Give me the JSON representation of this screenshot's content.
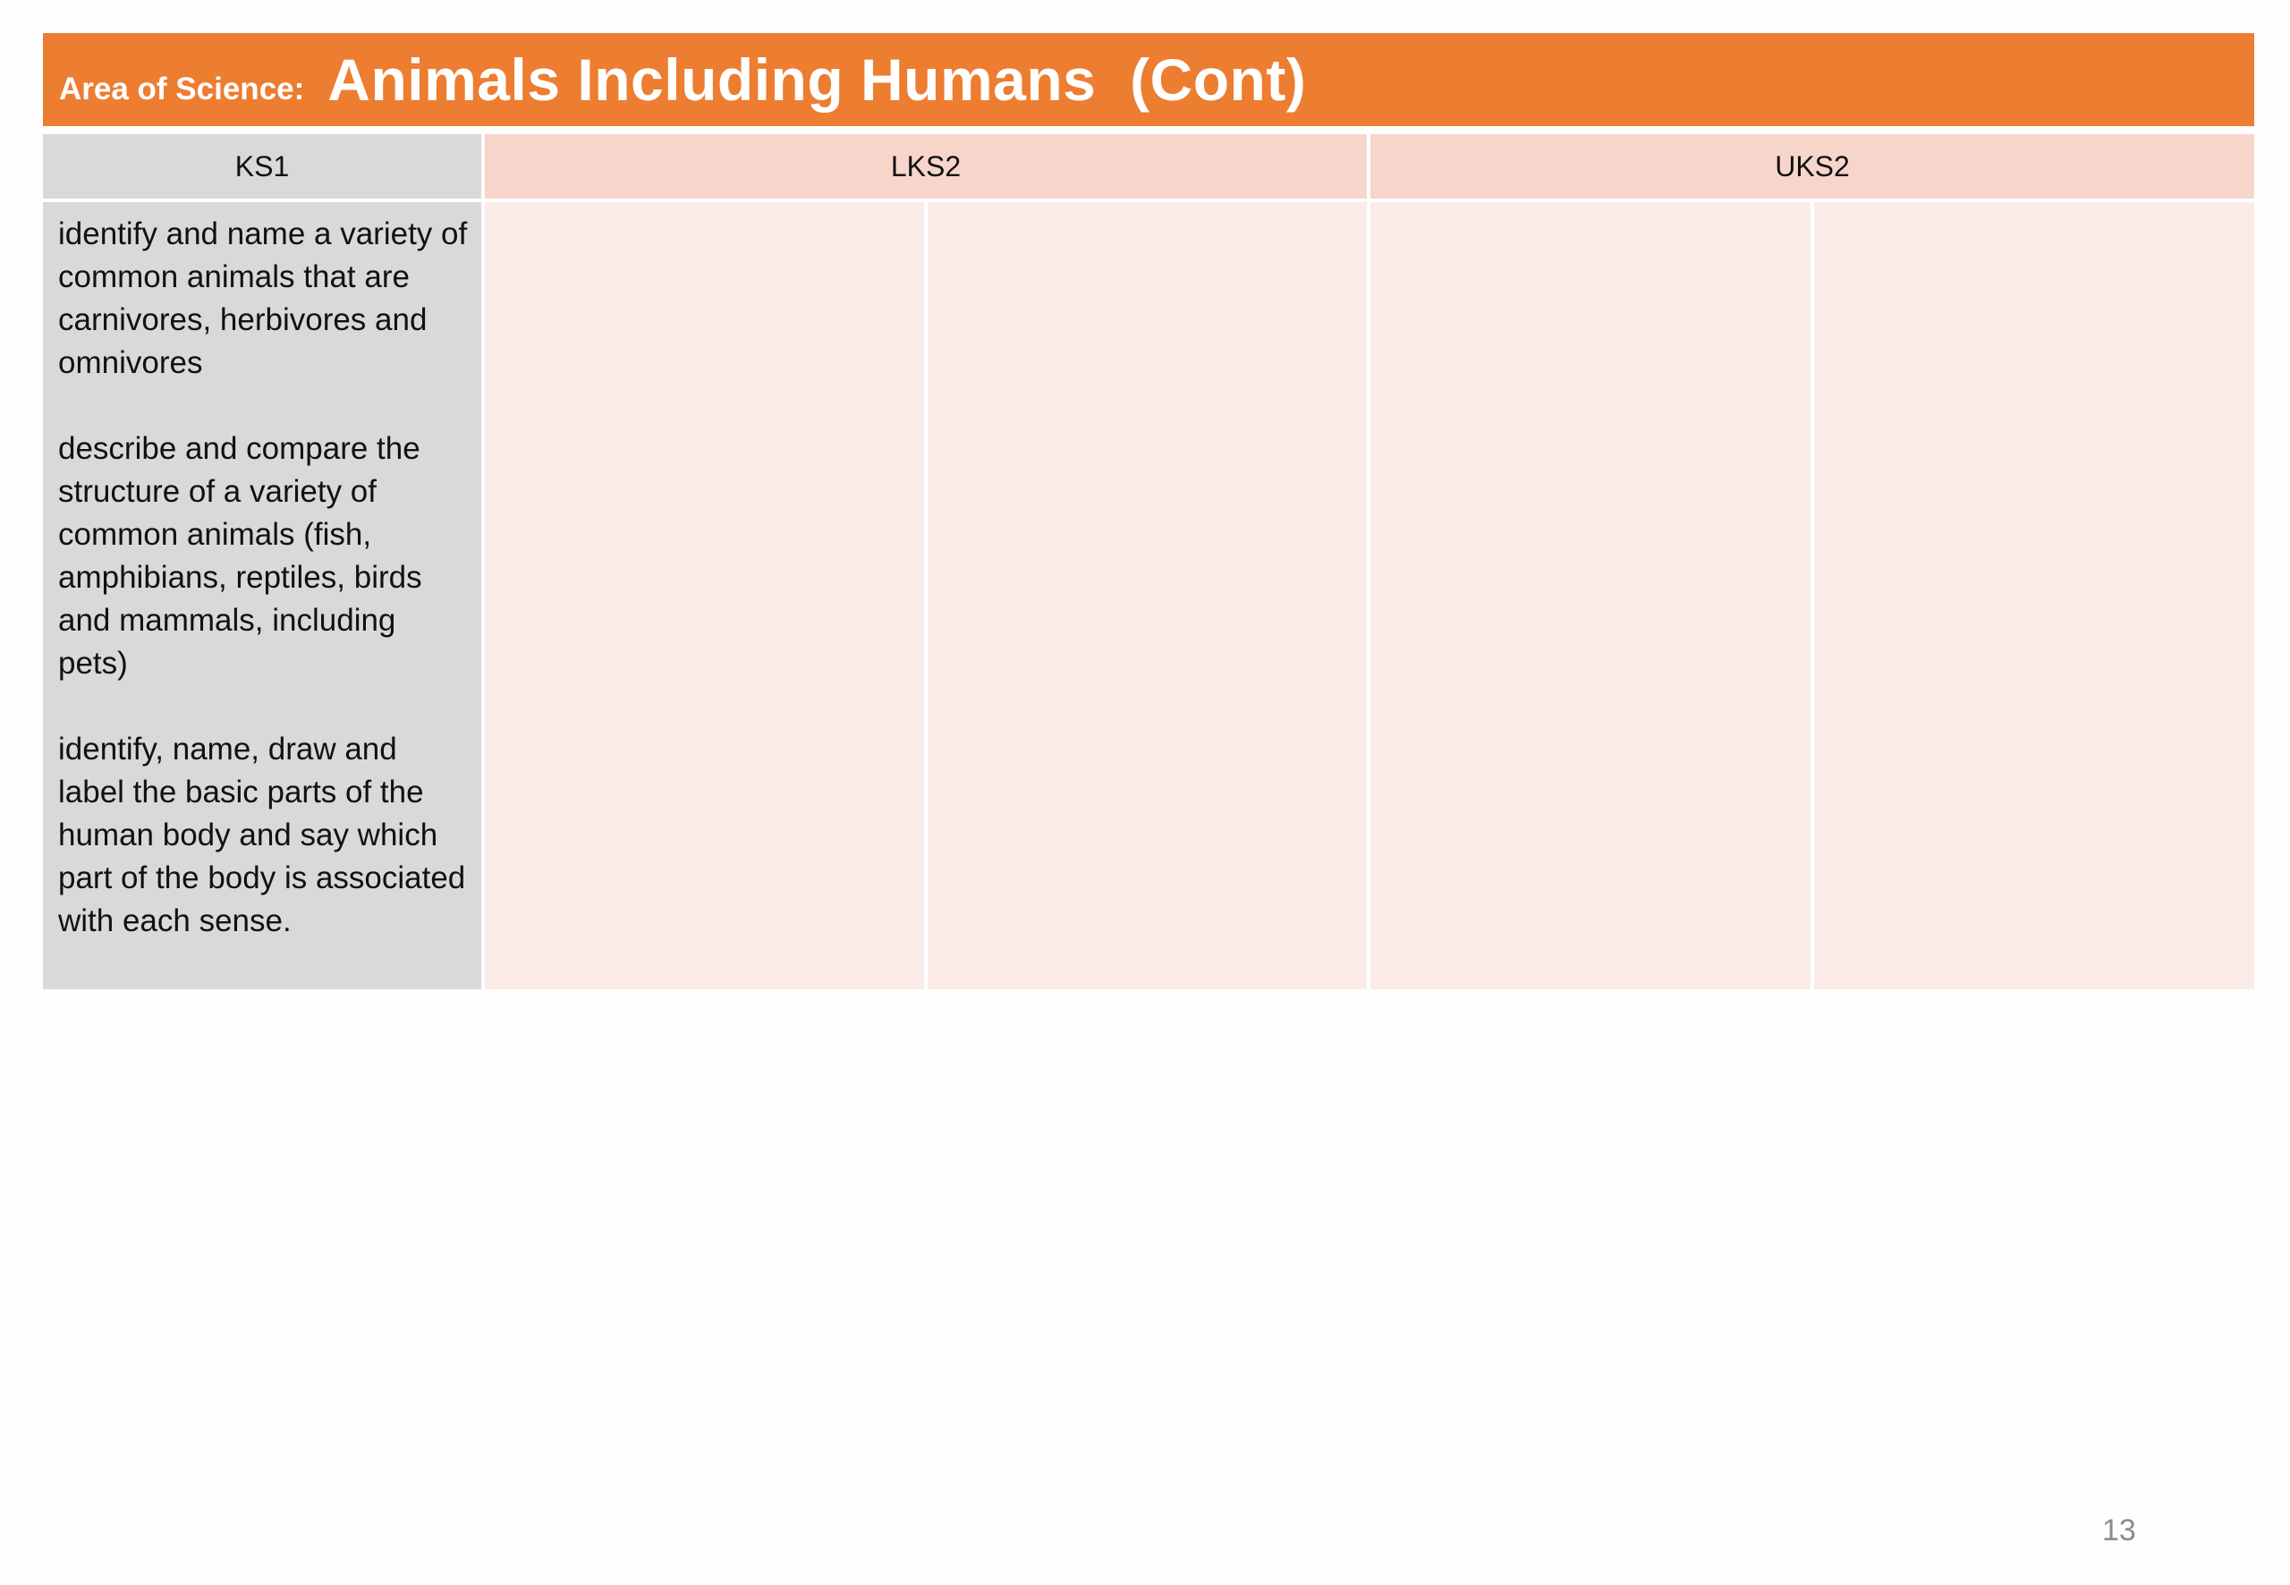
{
  "title": {
    "prefix": "Area of Science:",
    "main": "Animals Including Humans  (Cont)"
  },
  "table": {
    "headers": [
      "KS1",
      "LKS2",
      "UKS2"
    ],
    "ks1_paragraphs": [
      "identify and name a variety of common animals that are carnivores, herbivores and omnivores",
      "describe and compare the structure of a variety of common animals (fish, amphibians, reptiles, birds and mammals, including pets)",
      "identify, name, draw and label the basic parts of the human body and say which part of the body is associated with each sense."
    ]
  },
  "page_number": "13",
  "colors": {
    "title_bar": "#ed7d31",
    "ks1_fill": "#d9d9d9",
    "header_fill": "#f8d5cb",
    "body_fill": "#fbebe7"
  }
}
